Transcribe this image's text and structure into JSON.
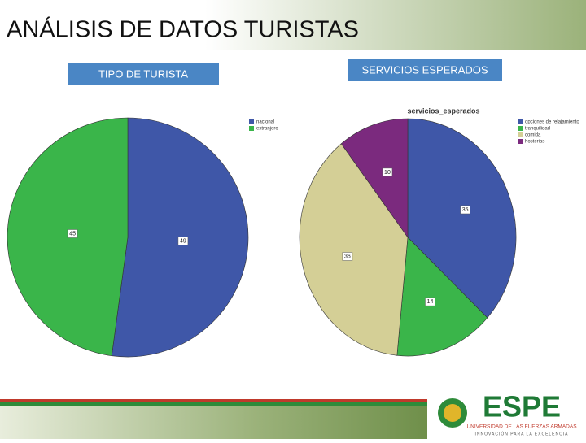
{
  "header": {
    "title": "ANÁLISIS DE DATOS TURISTAS"
  },
  "panels": [
    "TIPO DE TURISTA",
    "SERVICIOS ESPERADOS"
  ],
  "logo": {
    "name": "ESPE",
    "line1": "UNIVERSIDAD DE LAS FUERZAS ARMADAS",
    "line2": "INNOVACIÓN PARA LA EXCELENCIA"
  },
  "chart_data": [
    {
      "type": "pie",
      "categories": [
        "nacional",
        "extranjero"
      ],
      "values": [
        49,
        45
      ],
      "colors": [
        "#3f57a8",
        "#3ab54a"
      ]
    },
    {
      "type": "pie",
      "title": "servicios_esperados",
      "categories": [
        "opciones de relajamiento",
        "tranquilidad",
        "comida",
        "hosterias"
      ],
      "values": [
        35,
        14,
        36,
        10
      ],
      "colors": [
        "#3f57a8",
        "#3ab54a",
        "#d4cf96",
        "#7b2a7e"
      ]
    }
  ]
}
